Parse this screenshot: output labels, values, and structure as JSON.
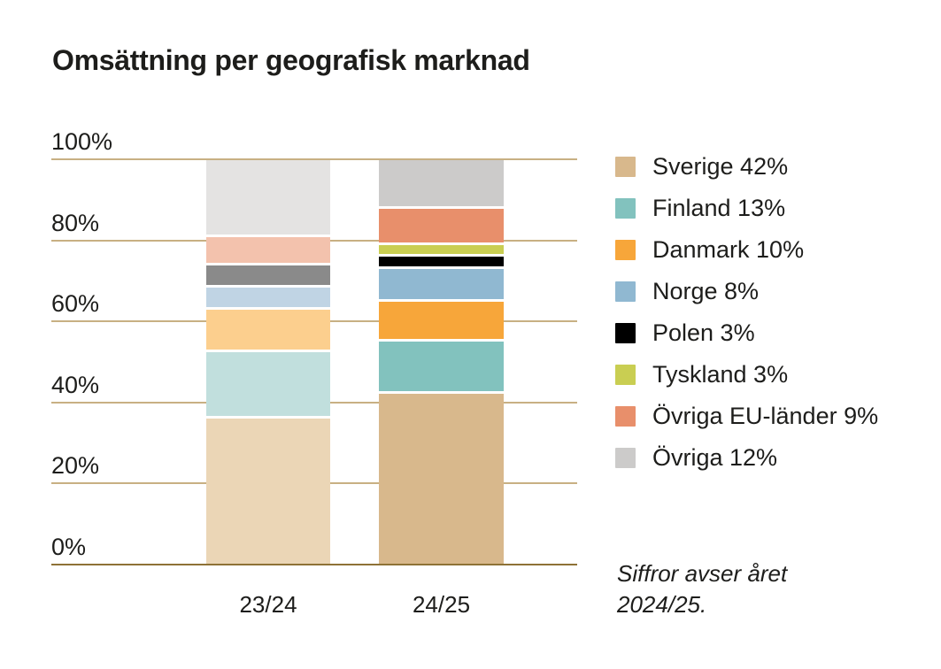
{
  "title": "Omsättning per geografisk marknad",
  "footnote": {
    "line1": "Siffror avser året",
    "line2": "2024/25."
  },
  "colors": {
    "background": "#ffffff",
    "text": "#1d1d1b",
    "gridline": "#c8b083",
    "baseline": "#8e7236",
    "segment_separator": "#ffffff"
  },
  "chart_data": {
    "type": "bar",
    "variant": "stacked-100-percent",
    "title": "Omsättning per geografisk marknad",
    "categories": [
      "23/24",
      "24/25"
    ],
    "series": [
      {
        "name": "Sverige",
        "legend_label": "Sverige 42%",
        "values": [
          36,
          42
        ],
        "color_by_category": [
          "#ebd6b6",
          "#d8b88c"
        ]
      },
      {
        "name": "Finland",
        "legend_label": "Finland 13%",
        "values": [
          16.5,
          13
        ],
        "color_by_category": [
          "#c1dfdd",
          "#82c2be"
        ]
      },
      {
        "name": "Danmark",
        "legend_label": "Danmark 10%",
        "values": [
          10.5,
          10
        ],
        "color_by_category": [
          "#fccf8e",
          "#f7a63a"
        ]
      },
      {
        "name": "Norge",
        "legend_label": "Norge 8%",
        "values": [
          5.5,
          8
        ],
        "color_by_category": [
          "#c0d4e4",
          "#90b8d1"
        ]
      },
      {
        "name": "Polen",
        "legend_label": "Polen 3%",
        "values": [
          5.5,
          3
        ],
        "color_by_category": [
          "#8a8a8a",
          "#000000"
        ]
      },
      {
        "name": "Tyskland",
        "legend_label": "Tyskland 3%",
        "values": [
          0,
          3
        ],
        "color_by_category": [
          "#dfe3a0",
          "#c9ce52"
        ]
      },
      {
        "name": "Övriga EU-länder",
        "legend_label": "Övriga EU-länder 9%",
        "values": [
          7,
          9
        ],
        "color_by_category": [
          "#f3c2ad",
          "#e88f6b"
        ]
      },
      {
        "name": "Övriga",
        "legend_label": "Övriga 12%",
        "values": [
          19,
          12
        ],
        "color_by_category": [
          "#e4e3e2",
          "#cccbca"
        ]
      }
    ],
    "stack_order_bottom_to_top": [
      "Sverige",
      "Finland",
      "Danmark",
      "Norge",
      "Polen",
      "Tyskland",
      "Övriga EU-länder",
      "Övriga"
    ],
    "ylim": [
      0,
      100
    ],
    "ytick_values": [
      0,
      20,
      40,
      60,
      80,
      100
    ],
    "ytick_labels": [
      "0%",
      "20%",
      "40%",
      "60%",
      "80%",
      "100%"
    ],
    "grid": true,
    "legend_position": "right",
    "note": "Siffror avser året 2024/25."
  }
}
